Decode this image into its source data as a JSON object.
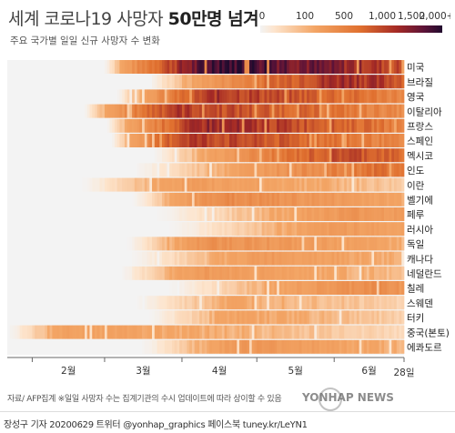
{
  "header": {
    "title_part1": "세계 코로나19 사망자 ",
    "title_part2": "50만명 넘겨",
    "subtitle": "주요 국가별 일일 신규 사망자 수 변화"
  },
  "chart_data": {
    "type": "heatmap",
    "title": "세계 코로나19 사망자 50만명 넘겨",
    "subtitle": "주요 국가별 일일 신규 사망자 수 변화",
    "legend": {
      "ticks": [
        "0",
        "100",
        "500",
        "1,000",
        "1,500",
        "2,000+"
      ],
      "tick_values": [
        0,
        100,
        500,
        1000,
        1500,
        2000
      ],
      "colors": [
        "#f3f3f3",
        "#fde4cc",
        "#f3a565",
        "#e0702f",
        "#a52a25",
        "#5c1338",
        "#220b2e"
      ]
    },
    "x_ticks": [
      "2월",
      "3월",
      "4월",
      "5월",
      "6월",
      "28일"
    ],
    "x_range": [
      "2020-01-22",
      "2020-06-28"
    ],
    "rows": [
      {
        "label": "미국",
        "onset": "2020-03-01",
        "peak": "2020-04-16",
        "level": 2000
      },
      {
        "label": "브라질",
        "onset": "2020-03-18",
        "peak": "2020-06-05",
        "level": 1100
      },
      {
        "label": "영국",
        "onset": "2020-03-06",
        "peak": "2020-04-14",
        "level": 950
      },
      {
        "label": "이탈리아",
        "onset": "2020-02-22",
        "peak": "2020-03-28",
        "level": 900
      },
      {
        "label": "프랑스",
        "onset": "2020-03-02",
        "peak": "2020-04-10",
        "level": 1100
      },
      {
        "label": "스페인",
        "onset": "2020-03-04",
        "peak": "2020-04-02",
        "level": 900
      },
      {
        "label": "멕시코",
        "onset": "2020-03-20",
        "peak": "2020-06-05",
        "level": 800
      },
      {
        "label": "인도",
        "onset": "2020-03-12",
        "peak": "2020-06-20",
        "level": 500
      },
      {
        "label": "이란",
        "onset": "2020-02-20",
        "peak": "2020-04-02",
        "level": 160
      },
      {
        "label": "벨기에",
        "onset": "2020-03-12",
        "peak": "2020-04-14",
        "level": 300
      },
      {
        "label": "페루",
        "onset": "2020-03-20",
        "peak": "2020-06-10",
        "level": 220
      },
      {
        "label": "러시아",
        "onset": "2020-03-25",
        "peak": "2020-06-05",
        "level": 180
      },
      {
        "label": "독일",
        "onset": "2020-03-10",
        "peak": "2020-04-12",
        "level": 250
      },
      {
        "label": "캐나다",
        "onset": "2020-03-10",
        "peak": "2020-05-05",
        "level": 180
      },
      {
        "label": "네덜란드",
        "onset": "2020-03-07",
        "peak": "2020-04-08",
        "level": 180
      },
      {
        "label": "칠레",
        "onset": "2020-03-25",
        "peak": "2020-06-15",
        "level": 280
      },
      {
        "label": "스웨덴",
        "onset": "2020-03-12",
        "peak": "2020-04-20",
        "level": 110
      },
      {
        "label": "터키",
        "onset": "2020-03-18",
        "peak": "2020-04-20",
        "level": 120
      },
      {
        "label": "중국(본토)",
        "onset": "2020-01-22",
        "peak": "2020-02-14",
        "level": 140
      },
      {
        "label": "에콰도르",
        "onset": "2020-03-15",
        "peak": "2020-04-25",
        "level": 200
      }
    ]
  },
  "footer": {
    "source": "자료/ AFP집계   ※일일 사망자 수는 집계기관의 수시 업데이트에 따라 상이할 수 있음",
    "watermark": "YONHAP NEWS",
    "credit": "장성구 기자  20200629  트위터 @yonhap_graphics  페이스북 tuney.kr/LeYN1"
  }
}
